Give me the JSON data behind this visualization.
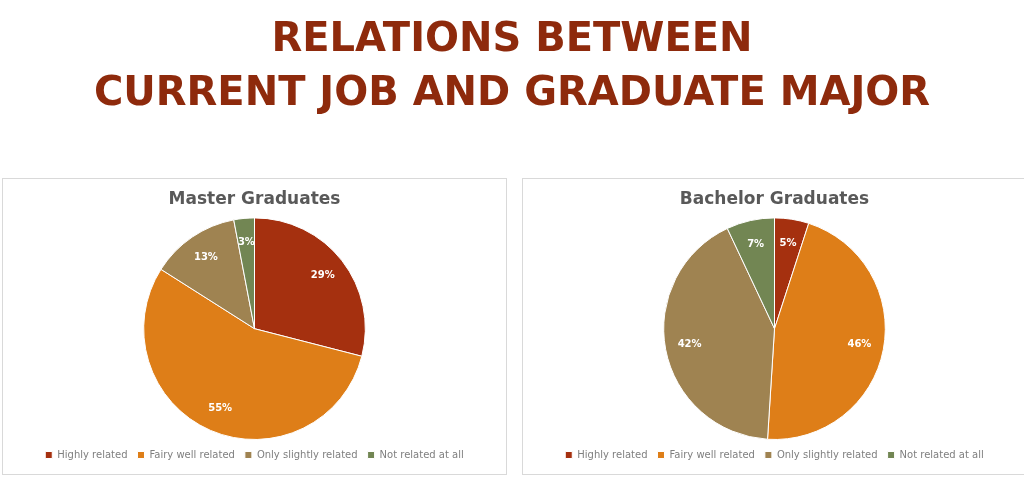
{
  "chart_data": [
    {
      "type": "other",
      "title": "RELATIONS BETWEEN\nCURRENT JOB AND GRADUATE MAJOR"
    },
    {
      "type": "pie",
      "title": "Master Graduates",
      "categories": [
        "Highly related",
        "Fairy well related",
        "Only slightly related",
        "Not related at all"
      ],
      "values": [
        29,
        55,
        13,
        3
      ],
      "value_labels": [
        "29%",
        "55%",
        "13%",
        "3%"
      ],
      "colors": [
        "#a5300f",
        "#de7e18",
        "#9f8351",
        "#728653"
      ],
      "legend": "bottom"
    },
    {
      "type": "pie",
      "title": "Bachelor Graduates",
      "categories": [
        "Highly related",
        "Fairy well related",
        "Only slightly related",
        "Not related at all"
      ],
      "values": [
        5,
        46,
        42,
        7
      ],
      "value_labels": [
        "5%",
        "46%",
        "42%",
        "7%"
      ],
      "colors": [
        "#a5300f",
        "#de7e18",
        "#9f8351",
        "#728653"
      ],
      "legend": "bottom"
    }
  ]
}
